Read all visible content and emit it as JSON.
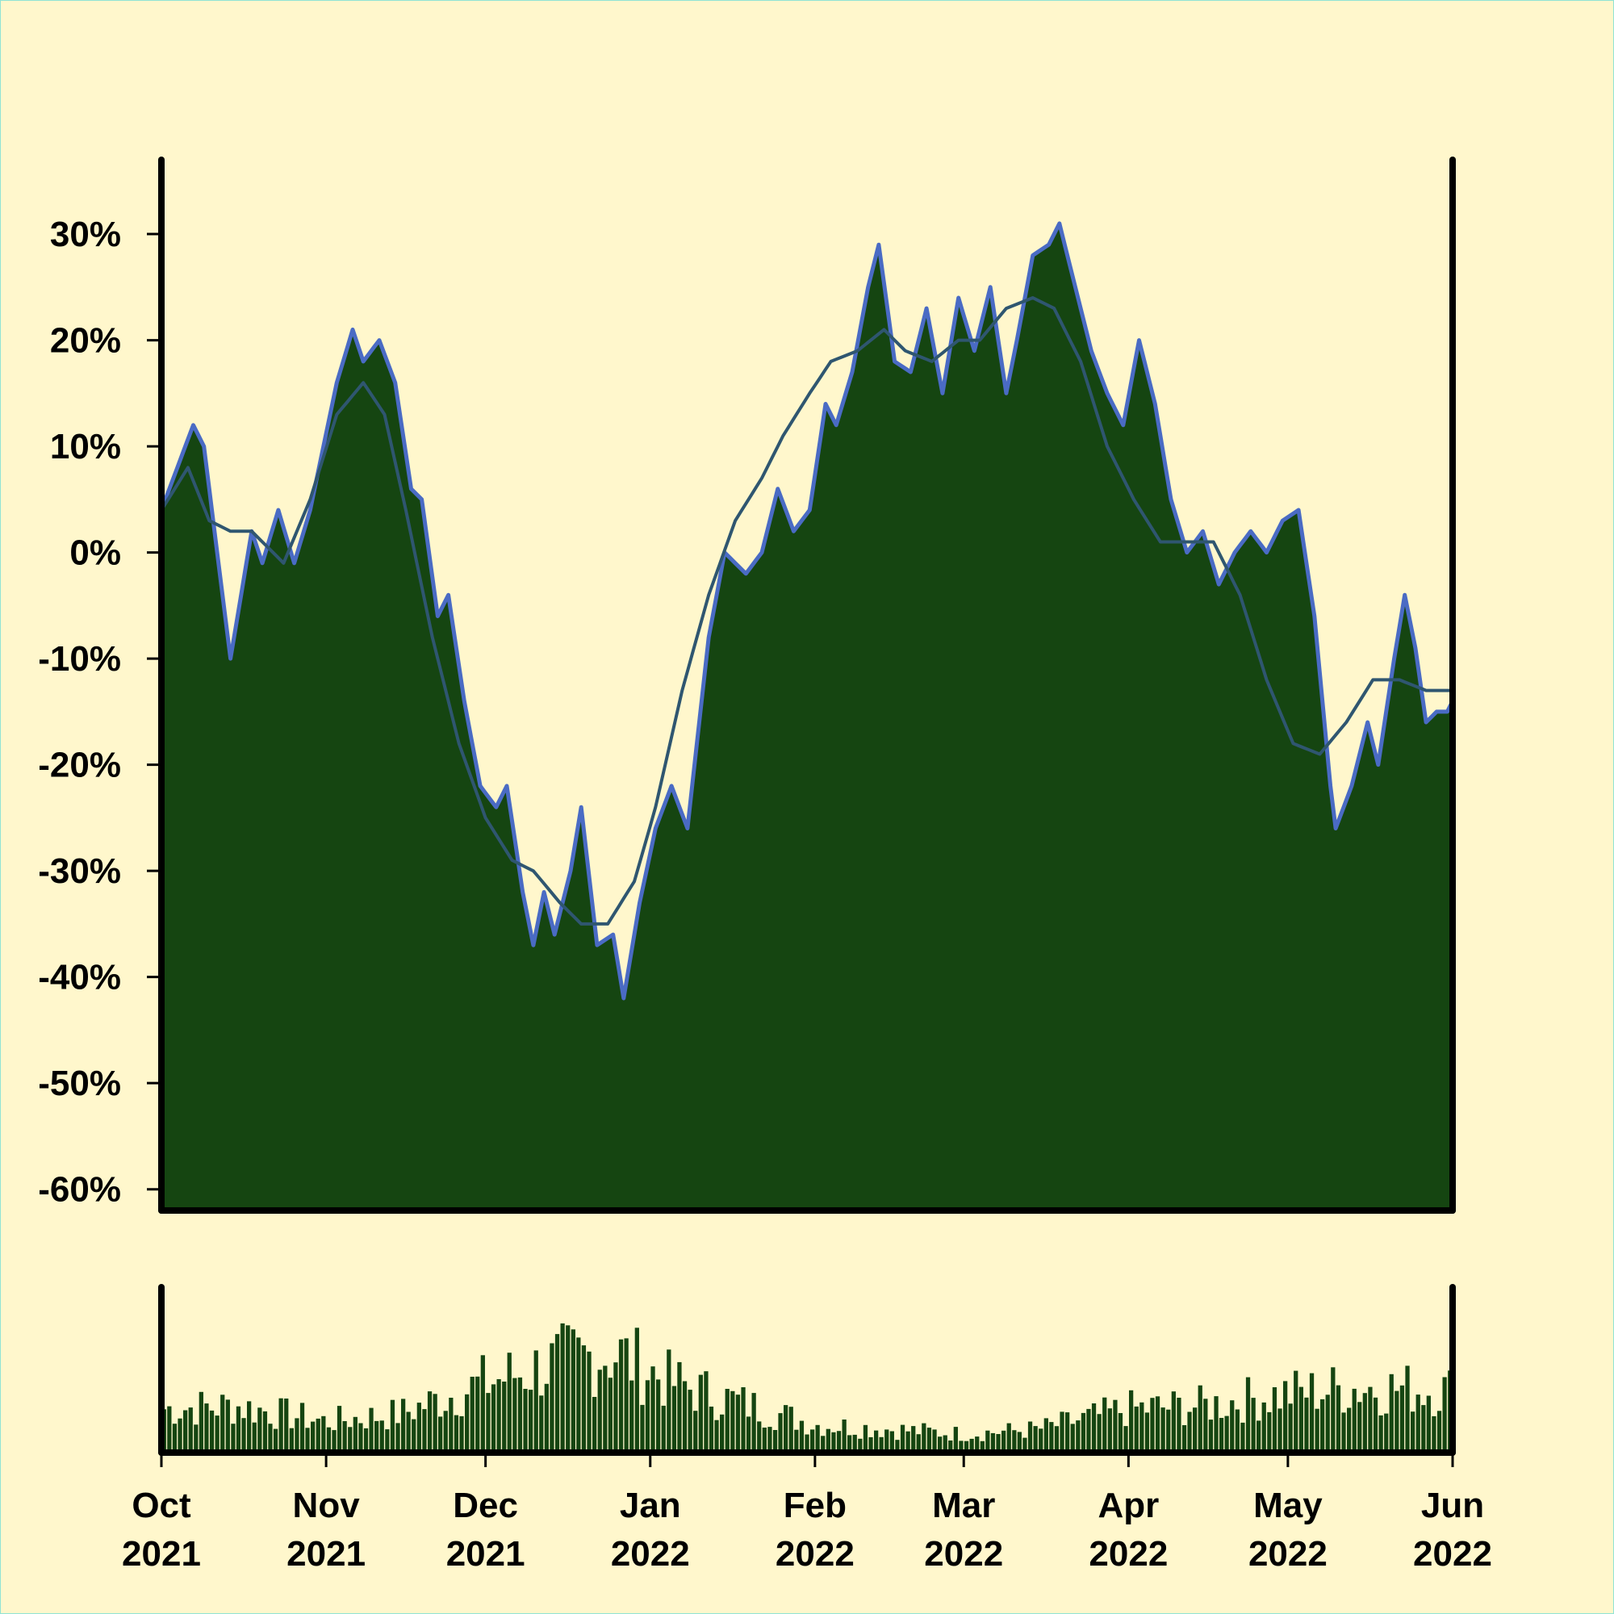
{
  "chart_data": [
    {
      "type": "area",
      "panel": "price",
      "y_unit": "%",
      "ylim": [
        -62,
        37
      ],
      "yticks": [
        30,
        20,
        10,
        0,
        -10,
        -20,
        -30,
        -40,
        -50,
        -60
      ],
      "ytick_labels": [
        "30%",
        "20%",
        "10%",
        "0%",
        "-10%",
        "-20%",
        "-30%",
        "-40%",
        "-50%",
        "-60%"
      ],
      "grid": false,
      "xlim": [
        "2021-10-01",
        "2022-06-01"
      ],
      "series": [
        {
          "style": "stepped-area",
          "fill_color": "#154511",
          "edge_color": "#4a6bc4",
          "points": [
            [
              "2021-10-01",
              4
            ],
            [
              "2021-10-04",
              8
            ],
            [
              "2021-10-07",
              12
            ],
            [
              "2021-10-09",
              10
            ],
            [
              "2021-10-14",
              -10
            ],
            [
              "2021-10-18",
              2
            ],
            [
              "2021-10-20",
              -1
            ],
            [
              "2021-10-23",
              4
            ],
            [
              "2021-10-26",
              -1
            ],
            [
              "2021-10-29",
              4
            ],
            [
              "2021-11-03",
              16
            ],
            [
              "2021-11-06",
              21
            ],
            [
              "2021-11-08",
              18
            ],
            [
              "2021-11-11",
              20
            ],
            [
              "2021-11-14",
              16
            ],
            [
              "2021-11-17",
              6
            ],
            [
              "2021-11-19",
              5
            ],
            [
              "2021-11-22",
              -6
            ],
            [
              "2021-11-24",
              -4
            ],
            [
              "2021-11-27",
              -14
            ],
            [
              "2021-11-30",
              -22
            ],
            [
              "2021-12-03",
              -24
            ],
            [
              "2021-12-05",
              -22
            ],
            [
              "2021-12-08",
              -32
            ],
            [
              "2021-12-10",
              -37
            ],
            [
              "2021-12-12",
              -32
            ],
            [
              "2021-12-14",
              -36
            ],
            [
              "2021-12-17",
              -30
            ],
            [
              "2021-12-19",
              -24
            ],
            [
              "2021-12-22",
              -37
            ],
            [
              "2021-12-25",
              -36
            ],
            [
              "2021-12-27",
              -42
            ],
            [
              "2021-12-30",
              -33
            ],
            [
              "2022-01-02",
              -26
            ],
            [
              "2022-01-05",
              -22
            ],
            [
              "2022-01-08",
              -26
            ],
            [
              "2022-01-12",
              -8
            ],
            [
              "2022-01-15",
              0
            ],
            [
              "2022-01-19",
              -2
            ],
            [
              "2022-01-22",
              0
            ],
            [
              "2022-01-25",
              6
            ],
            [
              "2022-01-28",
              2
            ],
            [
              "2022-01-31",
              4
            ],
            [
              "2022-02-03",
              14
            ],
            [
              "2022-02-05",
              12
            ],
            [
              "2022-02-08",
              17
            ],
            [
              "2022-02-11",
              25
            ],
            [
              "2022-02-13",
              29
            ],
            [
              "2022-02-16",
              18
            ],
            [
              "2022-02-19",
              17
            ],
            [
              "2022-02-22",
              23
            ],
            [
              "2022-02-25",
              15
            ],
            [
              "2022-02-28",
              24
            ],
            [
              "2022-03-03",
              19
            ],
            [
              "2022-03-06",
              25
            ],
            [
              "2022-03-09",
              15
            ],
            [
              "2022-03-11",
              20
            ],
            [
              "2022-03-14",
              28
            ],
            [
              "2022-03-17",
              29
            ],
            [
              "2022-03-19",
              31
            ],
            [
              "2022-03-22",
              25
            ],
            [
              "2022-03-25",
              19
            ],
            [
              "2022-03-28",
              15
            ],
            [
              "2022-03-31",
              12
            ],
            [
              "2022-04-03",
              20
            ],
            [
              "2022-04-06",
              14
            ],
            [
              "2022-04-09",
              5
            ],
            [
              "2022-04-12",
              0
            ],
            [
              "2022-04-15",
              2
            ],
            [
              "2022-04-18",
              -3
            ],
            [
              "2022-04-21",
              0
            ],
            [
              "2022-04-24",
              2
            ],
            [
              "2022-04-27",
              0
            ],
            [
              "2022-04-30",
              3
            ],
            [
              "2022-05-03",
              4
            ],
            [
              "2022-05-06",
              -6
            ],
            [
              "2022-05-09",
              -22
            ],
            [
              "2022-05-10",
              -26
            ],
            [
              "2022-05-13",
              -22
            ],
            [
              "2022-05-16",
              -16
            ],
            [
              "2022-05-18",
              -20
            ],
            [
              "2022-05-21",
              -10
            ],
            [
              "2022-05-23",
              -4
            ],
            [
              "2022-05-25",
              -9
            ],
            [
              "2022-05-27",
              -16
            ],
            [
              "2022-05-29",
              -15
            ],
            [
              "2022-05-31",
              -15
            ],
            [
              "2022-06-01",
              -14
            ]
          ]
        },
        {
          "style": "line",
          "line_color": "#2f5670",
          "points": [
            [
              "2021-10-01",
              4
            ],
            [
              "2021-10-06",
              8
            ],
            [
              "2021-10-10",
              3
            ],
            [
              "2021-10-14",
              2
            ],
            [
              "2021-10-18",
              2
            ],
            [
              "2021-10-24",
              -1
            ],
            [
              "2021-10-29",
              5
            ],
            [
              "2021-11-03",
              13
            ],
            [
              "2021-11-08",
              16
            ],
            [
              "2021-11-12",
              13
            ],
            [
              "2021-11-16",
              4
            ],
            [
              "2021-11-21",
              -8
            ],
            [
              "2021-11-26",
              -18
            ],
            [
              "2021-12-01",
              -25
            ],
            [
              "2021-12-06",
              -29
            ],
            [
              "2021-12-10",
              -30
            ],
            [
              "2021-12-15",
              -33
            ],
            [
              "2021-12-19",
              -35
            ],
            [
              "2021-12-24",
              -35
            ],
            [
              "2021-12-29",
              -31
            ],
            [
              "2022-01-02",
              -24
            ],
            [
              "2022-01-07",
              -13
            ],
            [
              "2022-01-12",
              -4
            ],
            [
              "2022-01-17",
              3
            ],
            [
              "2022-01-22",
              7
            ],
            [
              "2022-01-26",
              11
            ],
            [
              "2022-01-31",
              15
            ],
            [
              "2022-02-04",
              18
            ],
            [
              "2022-02-09",
              19
            ],
            [
              "2022-02-14",
              21
            ],
            [
              "2022-02-18",
              19
            ],
            [
              "2022-02-23",
              18
            ],
            [
              "2022-02-28",
              20
            ],
            [
              "2022-03-04",
              20
            ],
            [
              "2022-03-09",
              23
            ],
            [
              "2022-03-14",
              24
            ],
            [
              "2022-03-18",
              23
            ],
            [
              "2022-03-23",
              18
            ],
            [
              "2022-03-28",
              10
            ],
            [
              "2022-04-02",
              5
            ],
            [
              "2022-04-07",
              1
            ],
            [
              "2022-04-12",
              1
            ],
            [
              "2022-04-17",
              1
            ],
            [
              "2022-04-22",
              -4
            ],
            [
              "2022-04-27",
              -12
            ],
            [
              "2022-05-02",
              -18
            ],
            [
              "2022-05-07",
              -19
            ],
            [
              "2022-05-12",
              -16
            ],
            [
              "2022-05-17",
              -12
            ],
            [
              "2022-05-22",
              -12
            ],
            [
              "2022-05-27",
              -13
            ],
            [
              "2022-06-01",
              -13
            ]
          ]
        }
      ]
    },
    {
      "type": "bar",
      "panel": "volume",
      "bar_color": "#154511",
      "ylim": [
        0,
        100
      ],
      "axis_labels": false,
      "volume_profile": [
        [
          "2021-10-01",
          28
        ],
        [
          "2021-10-15",
          30
        ],
        [
          "2021-11-01",
          20
        ],
        [
          "2021-11-15",
          25
        ],
        [
          "2021-12-01",
          45
        ],
        [
          "2021-12-15",
          58
        ],
        [
          "2021-12-25",
          65
        ],
        [
          "2022-01-05",
          45
        ],
        [
          "2022-01-20",
          30
        ],
        [
          "2022-02-01",
          18
        ],
        [
          "2022-02-15",
          15
        ],
        [
          "2022-03-01",
          12
        ],
        [
          "2022-03-15",
          15
        ],
        [
          "2022-04-01",
          28
        ],
        [
          "2022-04-15",
          30
        ],
        [
          "2022-05-01",
          38
        ],
        [
          "2022-05-15",
          42
        ],
        [
          "2022-06-01",
          40
        ]
      ]
    }
  ],
  "x_axis": {
    "ticks": [
      {
        "date": "2021-10-01",
        "month": "Oct",
        "year": "2021"
      },
      {
        "date": "2021-11-01",
        "month": "Nov",
        "year": "2021"
      },
      {
        "date": "2021-12-01",
        "month": "Dec",
        "year": "2021"
      },
      {
        "date": "2022-01-01",
        "month": "Jan",
        "year": "2022"
      },
      {
        "date": "2022-02-01",
        "month": "Feb",
        "year": "2022"
      },
      {
        "date": "2022-03-01",
        "month": "Mar",
        "year": "2022"
      },
      {
        "date": "2022-04-01",
        "month": "Apr",
        "year": "2022"
      },
      {
        "date": "2022-05-01",
        "month": "May",
        "year": "2022"
      },
      {
        "date": "2022-06-01",
        "month": "Jun",
        "year": "2022"
      }
    ]
  },
  "colors": {
    "background": "#fff7cc",
    "axis": "#000000",
    "area_fill": "#154511",
    "area_edge": "#4a6bc4",
    "moving_average": "#2f5670",
    "page_border": "#8fe3d5"
  }
}
